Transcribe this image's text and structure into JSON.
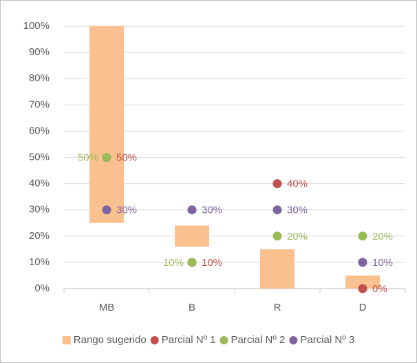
{
  "chart_data": {
    "type": "range-dot",
    "categories": [
      "MB",
      "B",
      "R",
      "D"
    ],
    "ylim": [
      0,
      100
    ],
    "yticks": [
      {
        "value": 0,
        "label": "0%"
      },
      {
        "value": 10,
        "label": "10%"
      },
      {
        "value": 20,
        "label": "20%"
      },
      {
        "value": 30,
        "label": "30%"
      },
      {
        "value": 40,
        "label": "40%"
      },
      {
        "value": 50,
        "label": "50%"
      },
      {
        "value": 60,
        "label": "60%"
      },
      {
        "value": 70,
        "label": "70%"
      },
      {
        "value": 80,
        "label": "80%"
      },
      {
        "value": 90,
        "label": "90%"
      },
      {
        "value": 100,
        "label": "100%"
      }
    ],
    "grid": true,
    "legend": "bottom",
    "range": {
      "name": "Rango sugerido",
      "color": "#fac090",
      "low": [
        25,
        16,
        0,
        0
      ],
      "high": [
        100,
        24,
        15,
        5
      ]
    },
    "series": [
      {
        "name": "Parcial Nº 1",
        "color": "#c0504d",
        "values": [
          50,
          10,
          40,
          0
        ],
        "value_labels": [
          "50%",
          "10%",
          "40%",
          "0%"
        ]
      },
      {
        "name": "Parcial Nº 2",
        "color": "#9bbb59",
        "values": [
          50,
          10,
          20,
          20
        ],
        "value_labels": [
          "50%",
          "10%",
          "20%",
          "20%"
        ]
      },
      {
        "name": "Parcial Nº 3",
        "color": "#8064a2",
        "values": [
          30,
          30,
          30,
          10
        ],
        "value_labels": [
          "30%",
          "30%",
          "30%",
          "10%"
        ]
      }
    ]
  }
}
